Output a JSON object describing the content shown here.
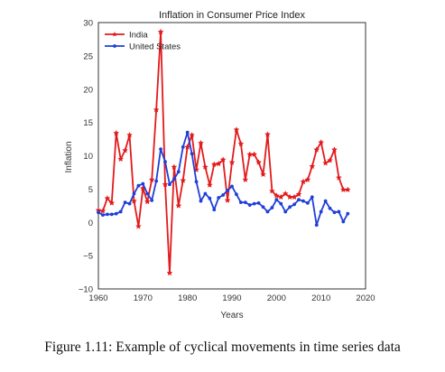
{
  "caption": "Figure 1.11: Example of cyclical movements in time series data",
  "chart_data": {
    "type": "line",
    "title": "Inflation in Consumer Price Index",
    "xlabel": "Years",
    "ylabel": "Inflation",
    "xlim": [
      1960,
      2020
    ],
    "ylim": [
      -10,
      30
    ],
    "xticks": [
      1960,
      1970,
      1980,
      1990,
      2000,
      2010,
      2020
    ],
    "yticks": [
      -10,
      -5,
      0,
      5,
      10,
      15,
      20,
      25,
      30
    ],
    "grid": false,
    "legend_position": "top-left",
    "series": [
      {
        "name": "India",
        "color": "#e31a1c",
        "marker": "star",
        "x": [
          1960,
          1961,
          1962,
          1963,
          1964,
          1965,
          1966,
          1967,
          1968,
          1969,
          1970,
          1971,
          1972,
          1973,
          1974,
          1975,
          1976,
          1977,
          1978,
          1979,
          1980,
          1981,
          1982,
          1983,
          1984,
          1985,
          1986,
          1987,
          1988,
          1989,
          1990,
          1991,
          1992,
          1993,
          1994,
          1995,
          1996,
          1997,
          1998,
          1999,
          2000,
          2001,
          2002,
          2003,
          2004,
          2005,
          2006,
          2007,
          2008,
          2009,
          2010,
          2011,
          2012,
          2013,
          2014,
          2015,
          2016
        ],
        "y": [
          1.8,
          1.7,
          3.6,
          2.9,
          13.4,
          9.5,
          10.8,
          13.1,
          3.2,
          -0.6,
          5.1,
          3.1,
          6.4,
          16.9,
          28.6,
          5.7,
          -7.6,
          8.3,
          2.5,
          6.3,
          11.3,
          13.1,
          7.9,
          11.9,
          8.3,
          5.6,
          8.7,
          8.8,
          9.4,
          3.3,
          9.0,
          13.9,
          11.8,
          6.4,
          10.2,
          10.2,
          9.0,
          7.2,
          13.2,
          4.7,
          4.0,
          3.8,
          4.3,
          3.8,
          3.8,
          4.2,
          6.1,
          6.4,
          8.4,
          10.9,
          12.0,
          8.9,
          9.3,
          10.9,
          6.7,
          4.9,
          4.9
        ]
      },
      {
        "name": "United States",
        "color": "#1f3fd8",
        "marker": "dot",
        "x": [
          1960,
          1961,
          1962,
          1963,
          1964,
          1965,
          1966,
          1967,
          1968,
          1969,
          1970,
          1971,
          1972,
          1973,
          1974,
          1975,
          1976,
          1977,
          1978,
          1979,
          1980,
          1981,
          1982,
          1983,
          1984,
          1985,
          1986,
          1987,
          1988,
          1989,
          1990,
          1991,
          1992,
          1993,
          1994,
          1995,
          1996,
          1997,
          1998,
          1999,
          2000,
          2001,
          2002,
          2003,
          2004,
          2005,
          2006,
          2007,
          2008,
          2009,
          2010,
          2011,
          2012,
          2013,
          2014,
          2015,
          2016
        ],
        "y": [
          1.5,
          1.1,
          1.2,
          1.2,
          1.3,
          1.6,
          3.0,
          2.8,
          4.3,
          5.5,
          5.8,
          4.3,
          3.3,
          6.2,
          11.0,
          9.1,
          5.7,
          6.5,
          7.6,
          11.3,
          13.5,
          10.3,
          6.1,
          3.2,
          4.3,
          3.6,
          1.9,
          3.7,
          4.1,
          4.8,
          5.4,
          4.2,
          3.0,
          3.0,
          2.6,
          2.8,
          2.9,
          2.3,
          1.6,
          2.2,
          3.4,
          2.8,
          1.6,
          2.3,
          2.7,
          3.4,
          3.2,
          2.9,
          3.8,
          -0.4,
          1.6,
          3.2,
          2.1,
          1.5,
          1.6,
          0.1,
          1.3
        ]
      }
    ]
  }
}
